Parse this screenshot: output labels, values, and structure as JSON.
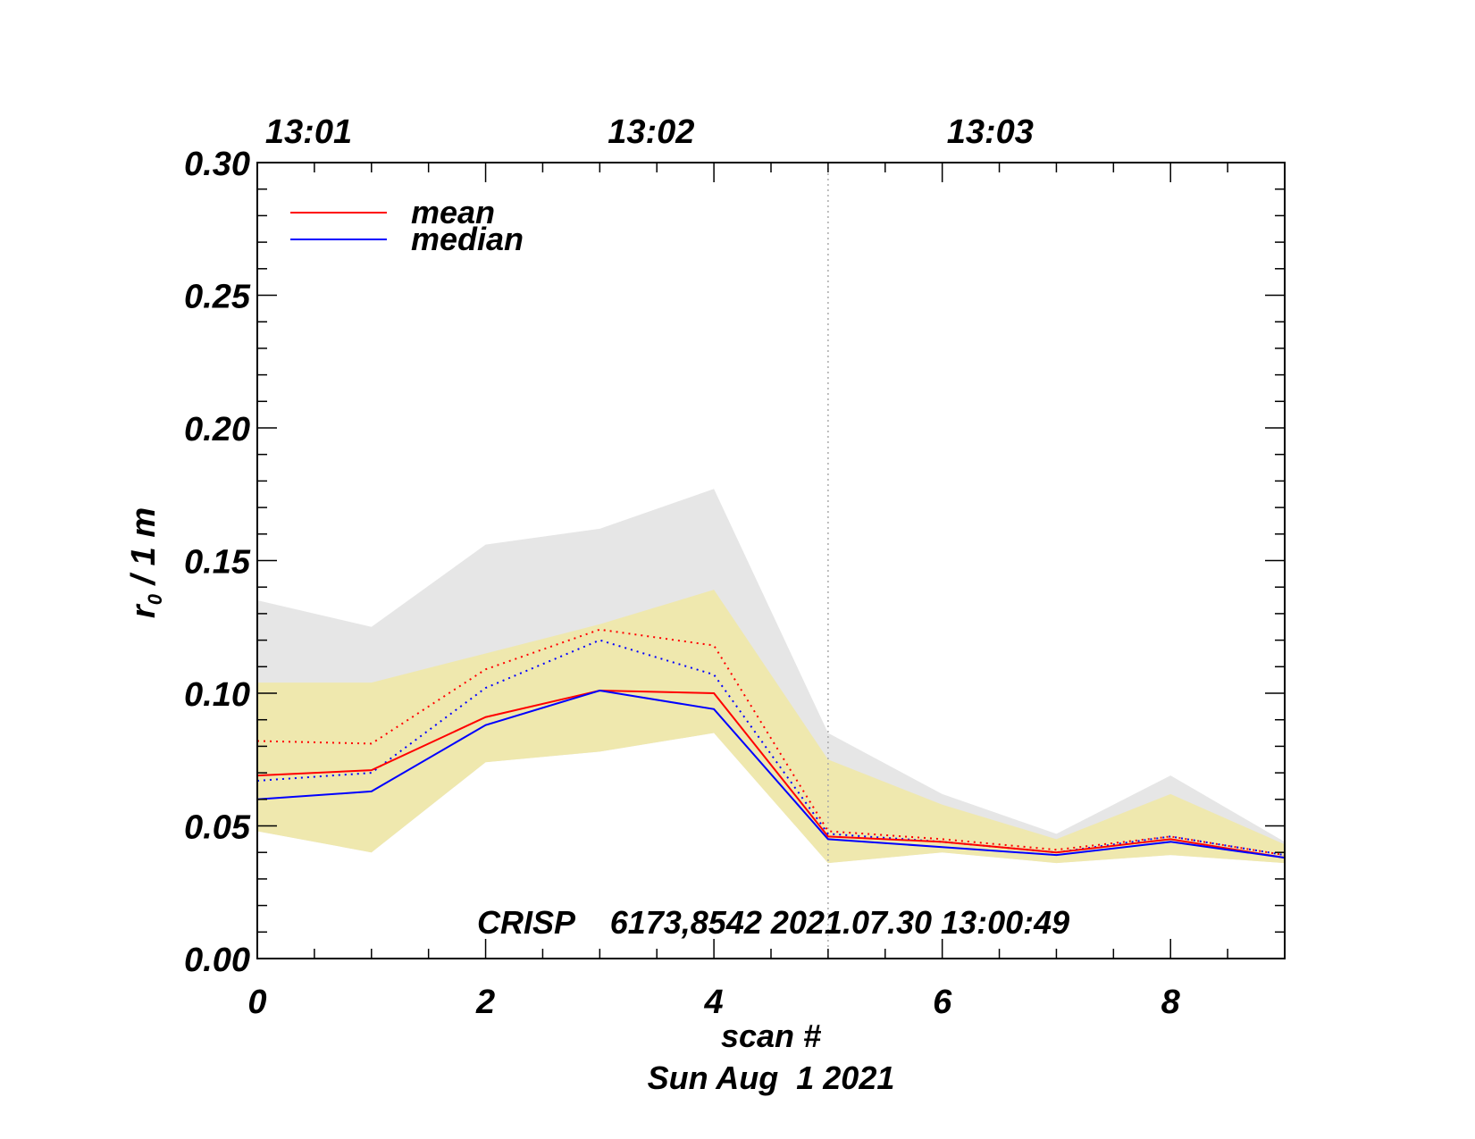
{
  "chart_data": {
    "type": "line",
    "title": "",
    "xlabel": "scan #",
    "ylabel_main": "r",
    "ylabel_sub": "0",
    "ylabel_rest": " / 1 m",
    "date_label": "Sun Aug  1 2021",
    "annotation": "CRISP    6173,8542 2021.07.30 13:00:49",
    "xlim": [
      0,
      9
    ],
    "ylim": [
      0,
      0.3
    ],
    "x_ticks": [
      0,
      2,
      4,
      6,
      8
    ],
    "x_tick_labels": [
      "0",
      "2",
      "4",
      "6",
      "8"
    ],
    "y_ticks": [
      0,
      0.05,
      0.1,
      0.15,
      0.2,
      0.25,
      0.3
    ],
    "y_tick_labels": [
      "0.00",
      "0.05",
      "0.10",
      "0.15",
      "0.20",
      "0.25",
      "0.30"
    ],
    "top_axis_ticks": [
      0.45,
      3.45,
      6.42
    ],
    "top_axis_labels": [
      "13:01",
      "13:02",
      "13:03"
    ],
    "vertical_marker_x": 5,
    "x": [
      0,
      1,
      2,
      3,
      4,
      5,
      6,
      7,
      8,
      9
    ],
    "gray_band": {
      "upper": [
        0.135,
        0.125,
        0.156,
        0.162,
        0.177,
        0.085,
        0.062,
        0.047,
        0.069,
        0.044
      ],
      "lower": [
        0.048,
        0.04,
        0.074,
        0.078,
        0.085,
        0.036,
        0.04,
        0.036,
        0.039,
        0.036
      ]
    },
    "yellow_band": {
      "upper": [
        0.104,
        0.104,
        0.115,
        0.126,
        0.139,
        0.075,
        0.058,
        0.045,
        0.062,
        0.043
      ],
      "lower": [
        0.048,
        0.04,
        0.074,
        0.078,
        0.085,
        0.036,
        0.04,
        0.036,
        0.039,
        0.036
      ]
    },
    "series": [
      {
        "name": "mean",
        "color": "#ff0000",
        "style": "solid",
        "in_legend": true,
        "values": [
          0.069,
          0.071,
          0.091,
          0.101,
          0.1,
          0.046,
          0.044,
          0.04,
          0.045,
          0.038
        ]
      },
      {
        "name": "median",
        "color": "#0000ff",
        "style": "solid",
        "in_legend": true,
        "values": [
          0.06,
          0.063,
          0.088,
          0.101,
          0.094,
          0.045,
          0.042,
          0.039,
          0.044,
          0.038
        ]
      },
      {
        "name": "mean (dotted)",
        "color": "#ff0000",
        "style": "dotted",
        "in_legend": false,
        "values": [
          0.082,
          0.081,
          0.109,
          0.124,
          0.118,
          0.048,
          0.045,
          0.041,
          0.046,
          0.039
        ]
      },
      {
        "name": "median (dotted)",
        "color": "#0000ff",
        "style": "dotted",
        "in_legend": false,
        "values": [
          0.067,
          0.07,
          0.102,
          0.12,
          0.107,
          0.047,
          0.044,
          0.04,
          0.046,
          0.039
        ]
      }
    ],
    "legend": [
      {
        "label": "mean",
        "color": "#ff0000"
      },
      {
        "label": "median",
        "color": "#0000ff"
      }
    ],
    "colors": {
      "gray_band": "#e6e6e6",
      "yellow_band": "#efe8ae",
      "marker": "#aaaaaa"
    }
  }
}
